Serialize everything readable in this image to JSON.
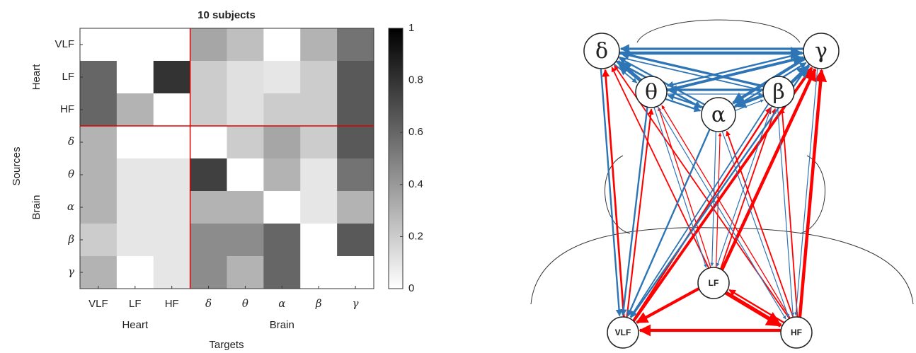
{
  "chart_data": {
    "type": "heatmap",
    "title": "10 subjects",
    "x_label": "Targets",
    "y_label": "Sources",
    "categories": [
      "VLF",
      "LF",
      "HF",
      "δ",
      "θ",
      "α",
      "β",
      "γ"
    ],
    "groups": [
      {
        "name": "Heart",
        "count": 3,
        "color": "#ff0000"
      },
      {
        "name": "Brain",
        "count": 5,
        "color": "#2e75b6"
      }
    ],
    "values": [
      [
        0,
        0,
        0,
        0.35,
        0.25,
        0,
        0.3,
        0.55
      ],
      [
        0.6,
        0,
        0.8,
        0.2,
        0.12,
        0.1,
        0.2,
        0.65
      ],
      [
        0.6,
        0.3,
        0,
        0.2,
        0.12,
        0.2,
        0.2,
        0.65
      ],
      [
        0.3,
        0,
        0,
        0,
        0.2,
        0.35,
        0.2,
        0.65
      ],
      [
        0.3,
        0.1,
        0.1,
        0.75,
        0,
        0.3,
        0.1,
        0.55
      ],
      [
        0.3,
        0.1,
        0.1,
        0.3,
        0.3,
        0,
        0.1,
        0.3
      ],
      [
        0.2,
        0.1,
        0.1,
        0.45,
        0.45,
        0.6,
        0,
        0.65
      ],
      [
        0.3,
        0,
        0.1,
        0.45,
        0.3,
        0.6,
        0,
        0
      ]
    ],
    "colormap": "gray_r",
    "zlim": [
      0,
      1
    ],
    "zticks": [
      0,
      0.2,
      0.4,
      0.6,
      0.8,
      1
    ],
    "divider_color": "#e00000"
  }
}
